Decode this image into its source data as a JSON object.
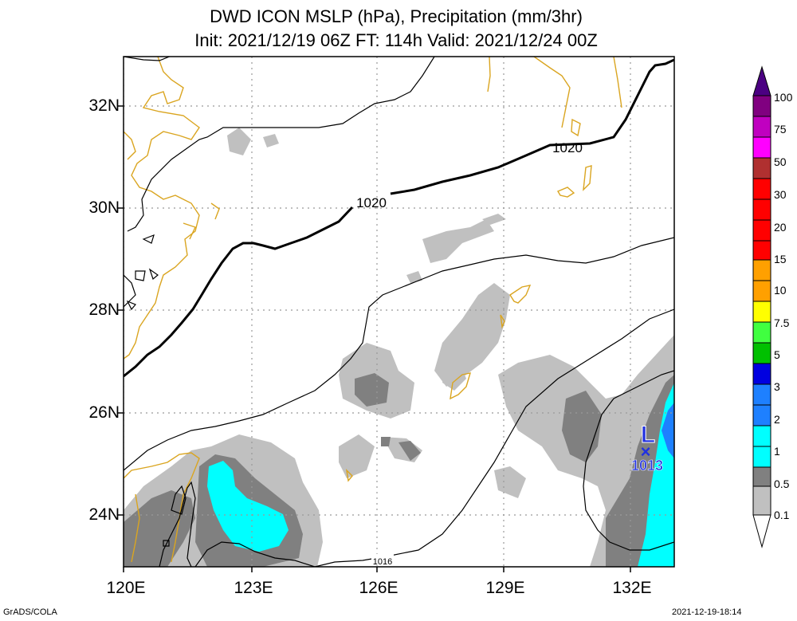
{
  "title": {
    "line1": "DWD ICON MSLP (hPa), Precipitation (mm/3hr)",
    "line2": "Init: 2021/12/19 06Z  FT: 114h  Valid: 2021/12/24 00Z"
  },
  "latitude_labels": [
    "32N",
    "30N",
    "28N",
    "26N",
    "24N"
  ],
  "longitude_labels": [
    "120E",
    "123E",
    "126E",
    "129E",
    "132E"
  ],
  "isobar_labels": [
    "1020",
    "1020",
    "1016"
  ],
  "low_center": {
    "symbol": "L",
    "marker": "×",
    "pressure": "1013"
  },
  "colorbar": {
    "labels": [
      "100",
      "75",
      "50",
      "30",
      "20",
      "15",
      "10",
      "7.5",
      "5",
      "3",
      "2",
      "1",
      "0.5",
      "0.1"
    ],
    "colors": [
      "#800080",
      "#c000c0",
      "#ff00ff",
      "#b03030",
      "#ff0000",
      "#ffa000",
      "#ffff00",
      "#40ff40",
      "#00c000",
      "#0000e0",
      "#1e80ff",
      "#00ffff",
      "#808080",
      "#c0c0c0",
      "#ffffff"
    ]
  },
  "precip_colors": {
    "light": "#c0c0c0",
    "medium": "#808080",
    "heavy": "#00ffff",
    "very_heavy": "#1e80ff"
  },
  "coast_color": "#daa520",
  "footer": {
    "left": "GrADS/COLA",
    "right": "2021-12-19-18:14"
  }
}
